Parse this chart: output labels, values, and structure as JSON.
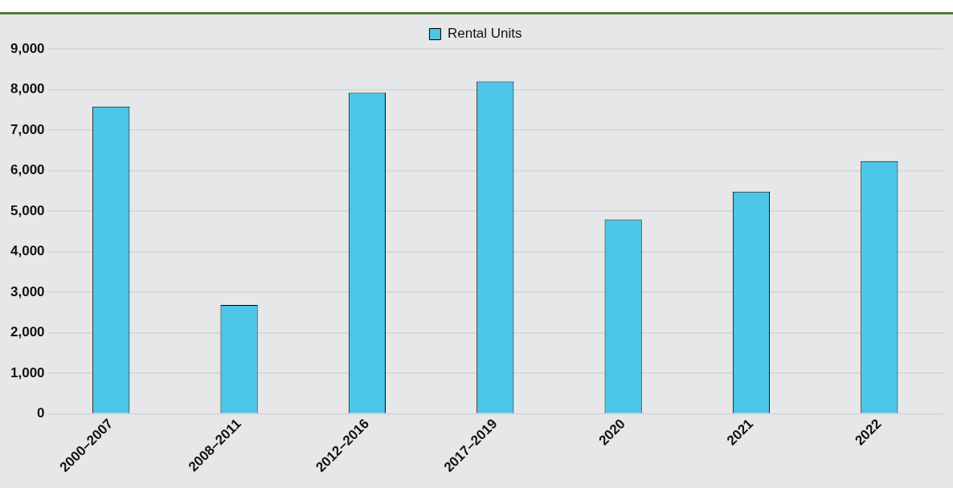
{
  "chart_data": {
    "type": "bar",
    "categories": [
      "2000–2007",
      "2008–2011",
      "2012–2016",
      "2017–2019",
      "2020",
      "2021",
      "2022"
    ],
    "series": [
      {
        "name": "Rental Units",
        "color": "#4bc6e8",
        "values": [
          7580,
          2680,
          7920,
          8200,
          4790,
          5480,
          6230
        ]
      }
    ],
    "ylim": [
      0,
      9000
    ],
    "yticks": [
      {
        "value": 0,
        "label": "0"
      },
      {
        "value": 1000,
        "label": "1,000"
      },
      {
        "value": 2000,
        "label": "2,000"
      },
      {
        "value": 3000,
        "label": "3,000"
      },
      {
        "value": 4000,
        "label": "4,000"
      },
      {
        "value": 5000,
        "label": "5,000"
      },
      {
        "value": 6000,
        "label": "6,000"
      },
      {
        "value": 7000,
        "label": "7,000"
      },
      {
        "value": 8000,
        "label": "8,000"
      },
      {
        "value": 9000,
        "label": "9,000"
      }
    ],
    "grid": "y",
    "legend": "top"
  }
}
